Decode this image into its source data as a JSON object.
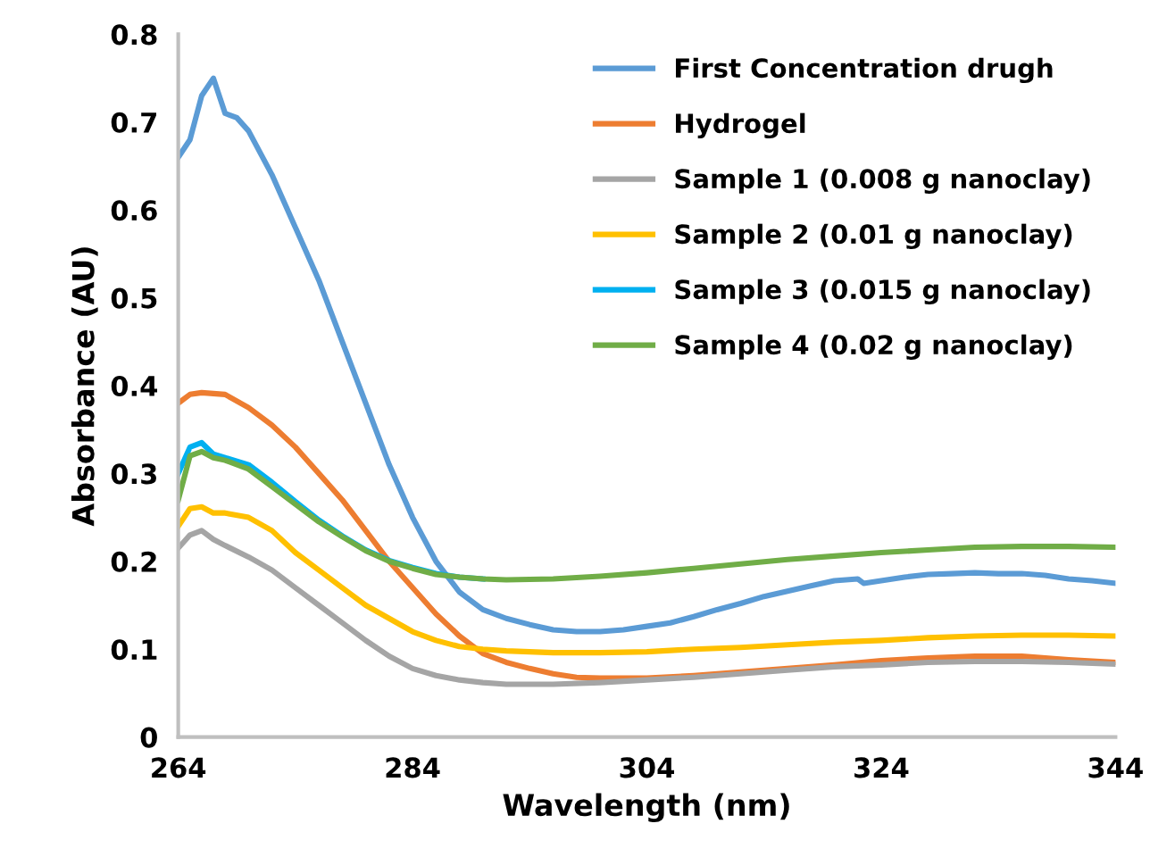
{
  "chart_data": {
    "type": "line",
    "xlabel": "Wavelength (nm)",
    "ylabel": "Absorbance (AU)",
    "xlim": [
      264,
      344
    ],
    "xticks": [
      264,
      284,
      304,
      324,
      344
    ],
    "ylim": [
      0,
      0.8
    ],
    "yticks": [
      0,
      0.1,
      0.2,
      0.3,
      0.4,
      0.5,
      0.6,
      0.7,
      0.8
    ],
    "grid": false,
    "legend": "top right",
    "marker": "none",
    "line_style": "solid",
    "series": [
      {
        "name": "First Concentration drugh",
        "color": "#5b9bd5",
        "x": [
          264,
          265,
          266,
          267,
          268,
          269,
          270,
          272,
          274,
          276,
          278,
          280,
          282,
          284,
          286,
          288,
          290,
          292,
          294,
          296,
          298,
          300,
          302,
          304,
          306,
          308,
          310,
          312,
          314,
          316,
          318,
          320,
          322,
          322.5,
          324,
          326,
          328,
          330,
          332,
          334,
          336,
          338,
          340,
          342,
          344
        ],
        "values": [
          0.66,
          0.68,
          0.73,
          0.75,
          0.71,
          0.705,
          0.69,
          0.64,
          0.58,
          0.52,
          0.45,
          0.38,
          0.31,
          0.25,
          0.2,
          0.165,
          0.145,
          0.135,
          0.128,
          0.122,
          0.12,
          0.12,
          0.122,
          0.126,
          0.13,
          0.137,
          0.145,
          0.152,
          0.16,
          0.166,
          0.172,
          0.178,
          0.18,
          0.175,
          0.178,
          0.182,
          0.185,
          0.186,
          0.187,
          0.186,
          0.186,
          0.184,
          0.18,
          0.178,
          0.175
        ]
      },
      {
        "name": "Hydrogel",
        "color": "#ed7d31",
        "x": [
          264,
          265,
          266,
          268,
          270,
          272,
          274,
          276,
          278,
          280,
          282,
          284,
          286,
          288,
          290,
          292,
          294,
          296,
          298,
          300,
          304,
          308,
          312,
          316,
          320,
          324,
          328,
          332,
          336,
          340,
          344
        ],
        "values": [
          0.38,
          0.39,
          0.392,
          0.39,
          0.375,
          0.355,
          0.33,
          0.3,
          0.27,
          0.235,
          0.2,
          0.17,
          0.14,
          0.115,
          0.095,
          0.085,
          0.078,
          0.072,
          0.068,
          0.067,
          0.067,
          0.07,
          0.074,
          0.078,
          0.082,
          0.087,
          0.09,
          0.092,
          0.092,
          0.088,
          0.085
        ]
      },
      {
        "name": "Sample 1 (0.008 g nanoclay)",
        "color": "#a5a5a5",
        "x": [
          264,
          265,
          266,
          267,
          268,
          270,
          272,
          274,
          276,
          278,
          280,
          282,
          284,
          286,
          288,
          290,
          292,
          296,
          300,
          304,
          308,
          312,
          316,
          320,
          324,
          328,
          332,
          336,
          340,
          344
        ],
        "values": [
          0.215,
          0.23,
          0.235,
          0.225,
          0.218,
          0.205,
          0.19,
          0.17,
          0.15,
          0.13,
          0.11,
          0.092,
          0.078,
          0.07,
          0.065,
          0.062,
          0.06,
          0.06,
          0.062,
          0.065,
          0.068,
          0.072,
          0.076,
          0.08,
          0.082,
          0.085,
          0.086,
          0.086,
          0.085,
          0.083
        ]
      },
      {
        "name": "Sample 2 (0.01 g nanoclay)",
        "color": "#ffc000",
        "x": [
          264,
          265,
          266,
          267,
          268,
          270,
          272,
          274,
          276,
          278,
          280,
          282,
          284,
          286,
          288,
          290,
          292,
          296,
          300,
          304,
          308,
          312,
          316,
          320,
          324,
          328,
          332,
          336,
          340,
          344
        ],
        "values": [
          0.24,
          0.26,
          0.262,
          0.255,
          0.255,
          0.25,
          0.235,
          0.21,
          0.19,
          0.17,
          0.15,
          0.135,
          0.12,
          0.11,
          0.103,
          0.1,
          0.098,
          0.096,
          0.096,
          0.097,
          0.1,
          0.102,
          0.105,
          0.108,
          0.11,
          0.113,
          0.115,
          0.116,
          0.116,
          0.115
        ]
      },
      {
        "name": "Sample 3 (0.015 g nanoclay)",
        "color": "#00b0f0",
        "x": [
          264,
          265,
          266,
          267,
          268,
          270,
          272,
          274,
          276,
          278,
          280,
          282,
          284,
          286,
          288,
          290
        ],
        "values": [
          0.3,
          0.33,
          0.335,
          0.322,
          0.318,
          0.31,
          0.29,
          0.268,
          0.247,
          0.229,
          0.213,
          0.201,
          0.193,
          0.186,
          0.182,
          0.18
        ]
      },
      {
        "name": "Sample 4 (0.02 g nanoclay)",
        "color": "#70ad47",
        "x": [
          264,
          265,
          266,
          267,
          268,
          270,
          272,
          274,
          276,
          278,
          280,
          282,
          284,
          286,
          288,
          290,
          292,
          296,
          300,
          304,
          308,
          312,
          316,
          320,
          324,
          328,
          332,
          336,
          340,
          344
        ],
        "values": [
          0.27,
          0.32,
          0.325,
          0.318,
          0.315,
          0.305,
          0.285,
          0.265,
          0.245,
          0.228,
          0.212,
          0.2,
          0.192,
          0.185,
          0.182,
          0.18,
          0.179,
          0.18,
          0.183,
          0.187,
          0.192,
          0.197,
          0.202,
          0.206,
          0.21,
          0.213,
          0.216,
          0.217,
          0.217,
          0.216
        ]
      }
    ]
  }
}
